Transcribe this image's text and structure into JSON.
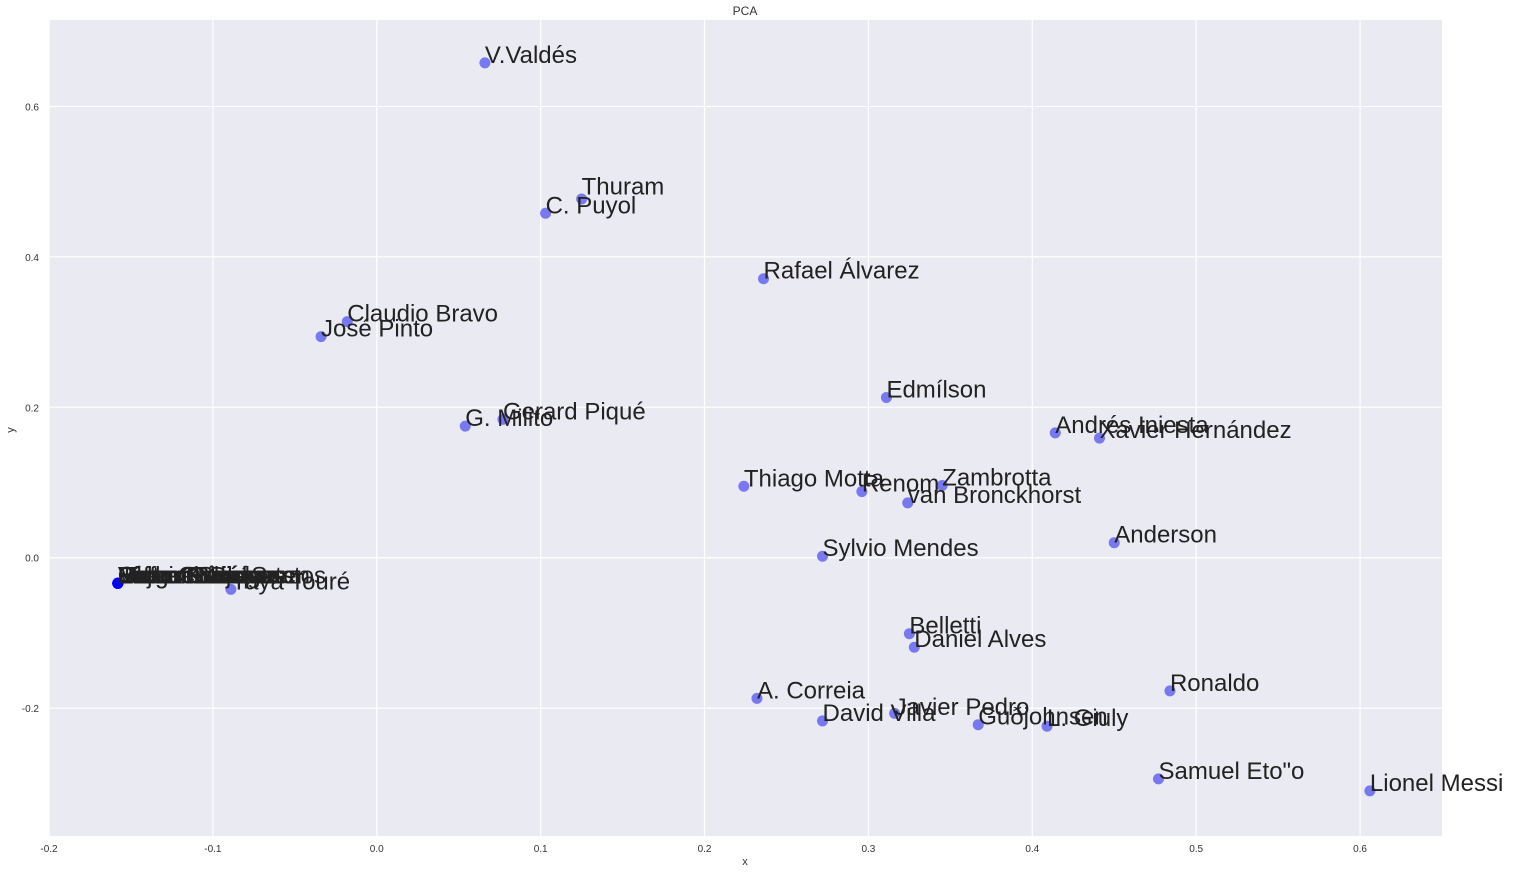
{
  "chart_data": {
    "type": "scatter",
    "title": "PCA",
    "xlabel": "x",
    "ylabel": "y",
    "xlim": [
      -0.2,
      0.65
    ],
    "ylim": [
      -0.37,
      0.715
    ],
    "grid": true,
    "legend": "none",
    "point_color": "#6b6bf0",
    "cluster_color": "#0000ff",
    "xticks": [
      -0.2,
      -0.1,
      0.0,
      0.1,
      0.2,
      0.3,
      0.4,
      0.5,
      0.6
    ],
    "xtick_labels": [
      "-0.2",
      "-0.1",
      "0.0",
      "0.1",
      "0.2",
      "0.3",
      "0.4",
      "0.5",
      "0.6"
    ],
    "yticks": [
      -0.2,
      0.0,
      0.2,
      0.4,
      0.6
    ],
    "ytick_labels": [
      "-0.2",
      "0.0",
      "0.2",
      "0.4",
      "0.6"
    ],
    "points": [
      {
        "label": "V.Valdés",
        "x": 0.066,
        "y": 0.658
      },
      {
        "label": "Thuram",
        "x": 0.125,
        "y": 0.477
      },
      {
        "label": "C. Puyol",
        "x": 0.103,
        "y": 0.458
      },
      {
        "label": "Rafael Álvarez",
        "x": 0.236,
        "y": 0.371
      },
      {
        "label": "Claudio Bravo",
        "x": -0.018,
        "y": 0.314
      },
      {
        "label": "José Pinto",
        "x": -0.034,
        "y": 0.294
      },
      {
        "label": "Edmílson",
        "x": 0.311,
        "y": 0.213
      },
      {
        "label": "Gerard Piqué",
        "x": 0.077,
        "y": 0.184
      },
      {
        "label": "G. Milito",
        "x": 0.054,
        "y": 0.175
      },
      {
        "label": "Andrés Iniesta",
        "x": 0.414,
        "y": 0.166
      },
      {
        "label": "Xavier Hernández",
        "x": 0.441,
        "y": 0.159
      },
      {
        "label": "Thiago Motta",
        "x": 0.224,
        "y": 0.095
      },
      {
        "label": "Zambrotta",
        "x": 0.345,
        "y": 0.096
      },
      {
        "label": "Renom",
        "x": 0.296,
        "y": 0.088
      },
      {
        "label": "van Bronckhorst",
        "x": 0.324,
        "y": 0.073
      },
      {
        "label": "Anderson",
        "x": 0.45,
        "y": 0.02
      },
      {
        "label": "Sylvio Mendes",
        "x": 0.272,
        "y": 0.002
      },
      {
        "label": "Belletti",
        "x": 0.325,
        "y": -0.101
      },
      {
        "label": "Daniel Alves",
        "x": 0.328,
        "y": -0.119
      },
      {
        "label": "Ronaldo",
        "x": 0.484,
        "y": -0.177
      },
      {
        "label": "A. Correia",
        "x": 0.232,
        "y": -0.187
      },
      {
        "label": "Javier Pedro",
        "x": 0.316,
        "y": -0.207
      },
      {
        "label": "David Villa",
        "x": 0.272,
        "y": -0.217
      },
      {
        "label": "Guðjohnsen",
        "x": 0.367,
        "y": -0.222
      },
      {
        "label": "L. Giuly",
        "x": 0.409,
        "y": -0.224
      },
      {
        "label": "Samuel Eto\"o",
        "x": 0.477,
        "y": -0.294
      },
      {
        "label": "Lionel Messi",
        "x": 0.606,
        "y": -0.31
      },
      {
        "label": "Yaya Touré",
        "x": -0.089,
        "y": -0.042
      },
      {
        "label": "Eidur Gudjohnsen",
        "x": -0.158,
        "y": -0.034
      },
      {
        "label": "Oleguer Presas",
        "x": -0.158,
        "y": -0.034
      },
      {
        "label": "Sergio Busquets",
        "x": -0.158,
        "y": -0.034
      },
      {
        "label": "Bojan Krkić",
        "x": -0.158,
        "y": -0.034
      },
      {
        "label": "Giovani dos Santos",
        "x": -0.158,
        "y": -0.034
      },
      {
        "label": "Jeffren Suárez",
        "x": -0.158,
        "y": -0.034
      },
      {
        "label": "Pedro Rodríguez",
        "x": -0.158,
        "y": -0.034
      },
      {
        "label": "Marc Crosas",
        "x": -0.158,
        "y": -0.034
      },
      {
        "label": "Víctor Sánchez",
        "x": -0.158,
        "y": -0.034
      }
    ],
    "label_overrides": {
      "Thuram": {
        "dy": 0.006
      },
      "Javier Pedro": {
        "dy": -0.002
      }
    }
  }
}
